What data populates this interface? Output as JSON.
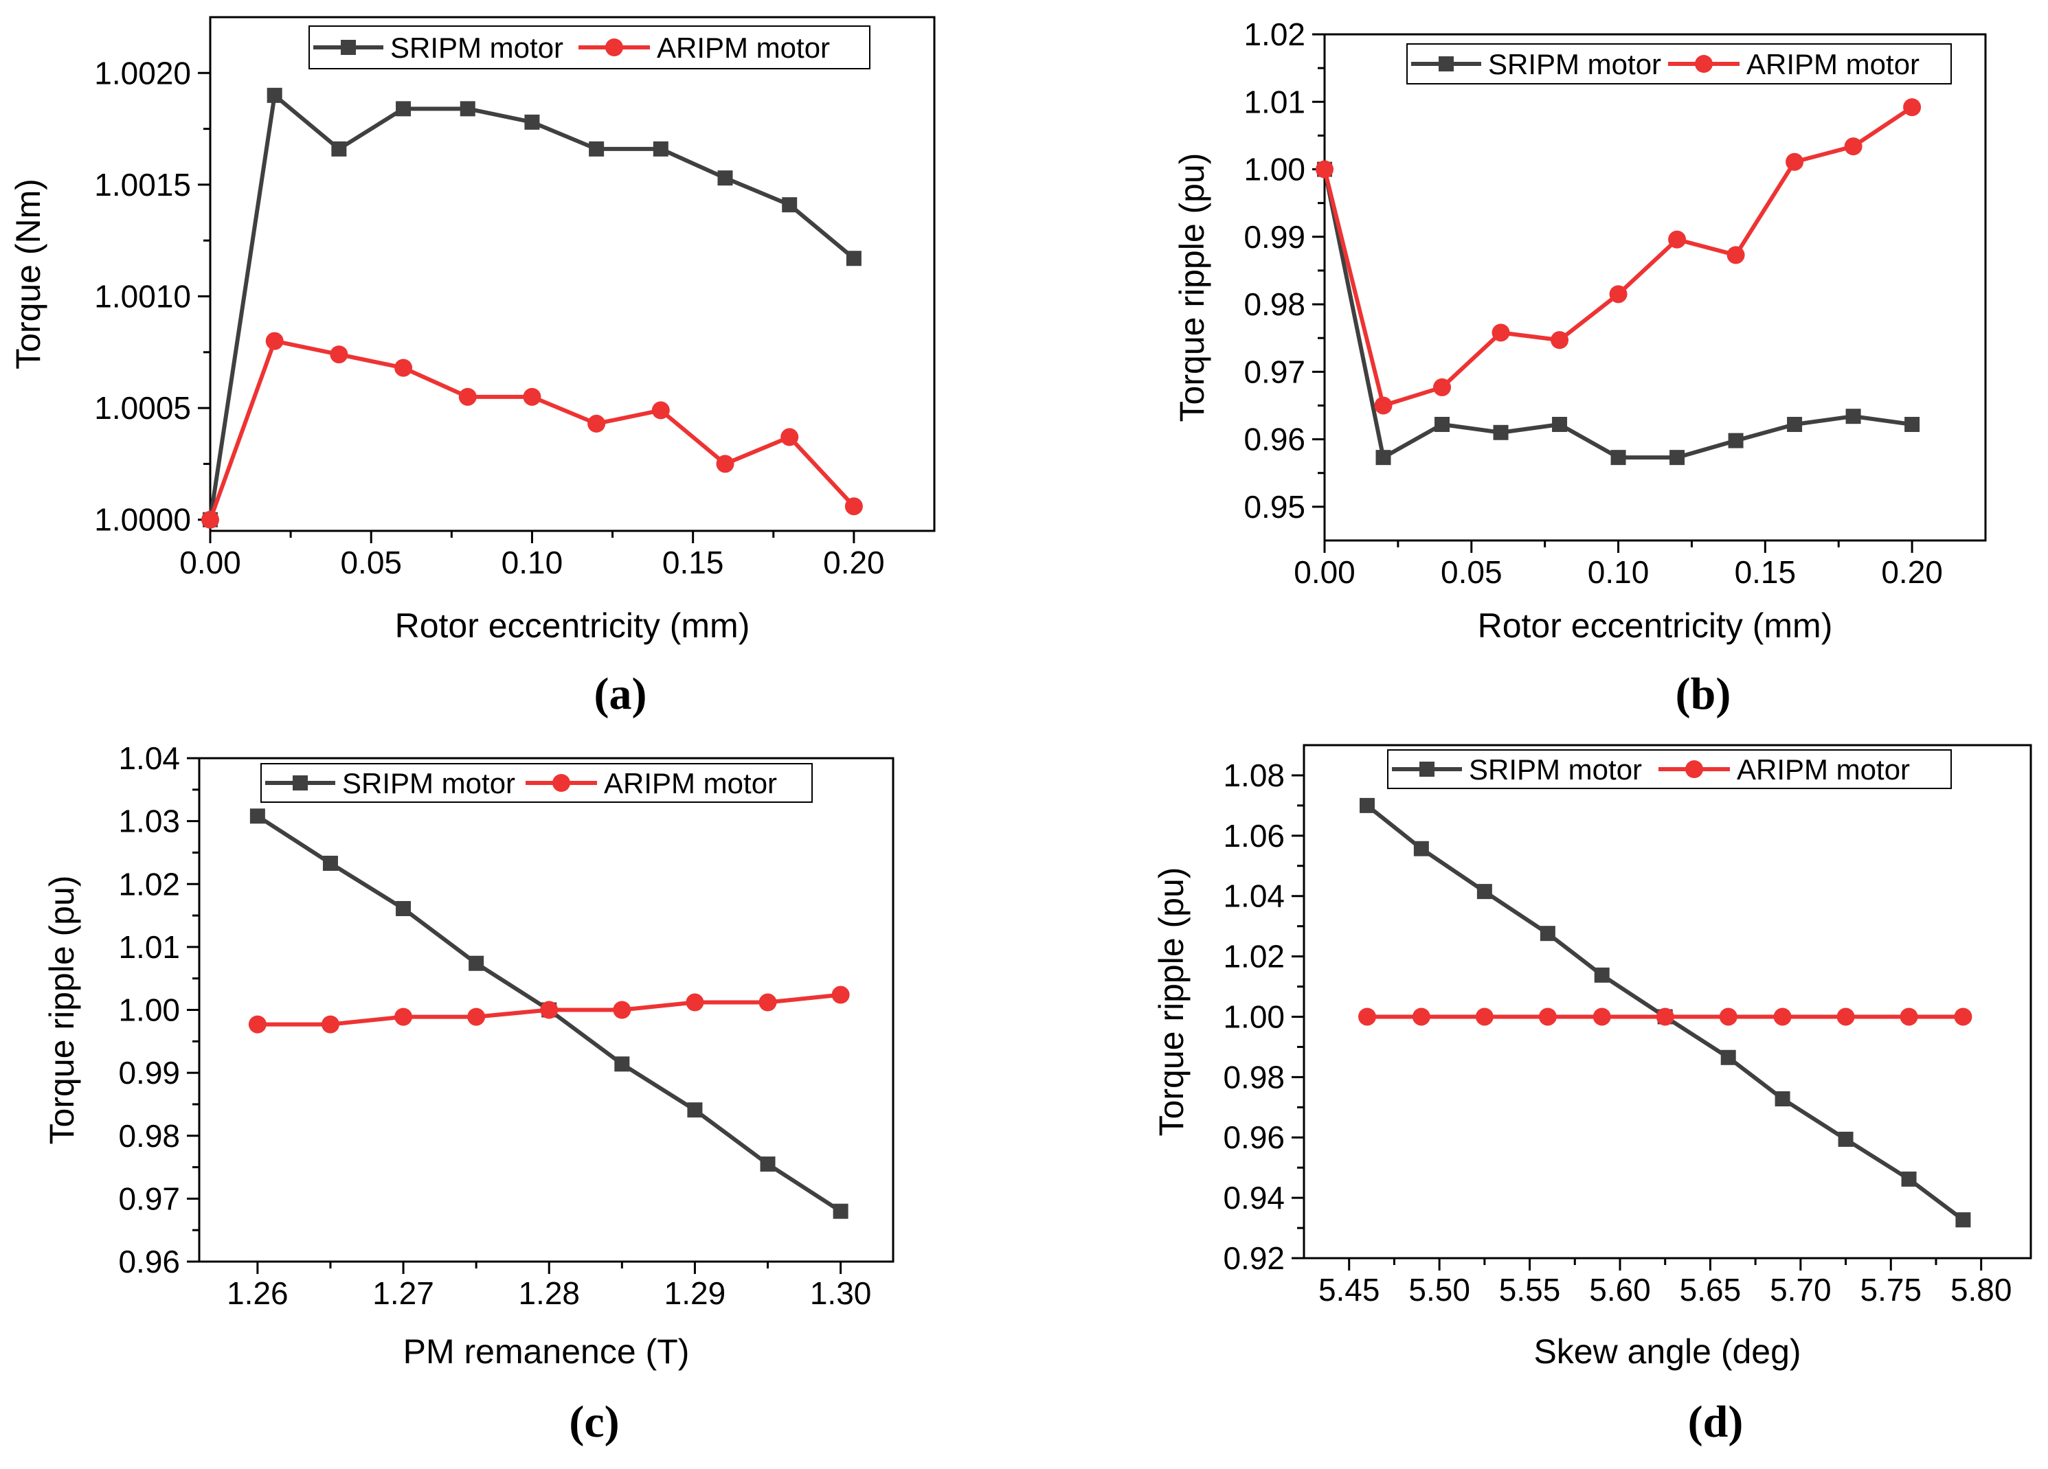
{
  "colors": {
    "sripm": "#404040",
    "aripm": "#ee3333",
    "axis": "#000000"
  },
  "chart_data": [
    {
      "id": "a",
      "panel_label": "(a)",
      "type": "line",
      "xlabel": "Rotor eccentricity (mm)",
      "ylabel": "Torque (Nm)",
      "xlim": [
        0,
        0.225
      ],
      "ylim": [
        0.99995,
        1.00225
      ],
      "xticks": [
        0,
        0.05,
        0.1,
        0.15,
        0.2
      ],
      "xtick_labels": [
        "0.00",
        "0.05",
        "0.10",
        "0.15",
        "0.20"
      ],
      "yticks": [
        1.0,
        1.0005,
        1.001,
        1.0015,
        1.002
      ],
      "ytick_labels": [
        "1.0000",
        "1.0005",
        "1.0010",
        "1.0015",
        "1.0020"
      ],
      "legend_position": "top-center",
      "series": [
        {
          "name": "SRIPM motor",
          "marker": "square",
          "x": [
            0,
            0.02,
            0.04,
            0.06,
            0.08,
            0.1,
            0.12,
            0.14,
            0.16,
            0.18,
            0.2
          ],
          "values": [
            1.0,
            1.0019,
            1.00166,
            1.00184,
            1.00184,
            1.00178,
            1.00166,
            1.00166,
            1.00153,
            1.00141,
            1.00117
          ]
        },
        {
          "name": "ARIPM motor",
          "marker": "circle",
          "x": [
            0,
            0.02,
            0.04,
            0.06,
            0.08,
            0.1,
            0.12,
            0.14,
            0.16,
            0.18,
            0.2
          ],
          "values": [
            1.0,
            1.0008,
            1.00074,
            1.00068,
            1.00055,
            1.00055,
            1.00043,
            1.00049,
            1.00025,
            1.00037,
            1.00006
          ]
        }
      ]
    },
    {
      "id": "b",
      "panel_label": "(b)",
      "type": "line",
      "xlabel": "Rotor eccentricity (mm)",
      "ylabel": "Torque ripple (pu)",
      "xlim": [
        0,
        0.225
      ],
      "ylim": [
        0.945,
        1.02
      ],
      "xticks": [
        0,
        0.05,
        0.1,
        0.15,
        0.2
      ],
      "xtick_labels": [
        "0.00",
        "0.05",
        "0.10",
        "0.15",
        "0.20"
      ],
      "yticks": [
        0.95,
        0.96,
        0.97,
        0.98,
        0.99,
        1.0,
        1.01,
        1.02
      ],
      "ytick_labels": [
        "0.95",
        "0.96",
        "0.97",
        "0.98",
        "0.99",
        "1.00",
        "1.01",
        "1.02"
      ],
      "legend_position": "top-center",
      "series": [
        {
          "name": "SRIPM motor",
          "marker": "square",
          "x": [
            0,
            0.02,
            0.04,
            0.06,
            0.08,
            0.1,
            0.12,
            0.14,
            0.16,
            0.18,
            0.2
          ],
          "values": [
            1.0,
            0.9573,
            0.9622,
            0.961,
            0.9622,
            0.9573,
            0.9573,
            0.9598,
            0.9622,
            0.9634,
            0.9622
          ]
        },
        {
          "name": "ARIPM motor",
          "marker": "circle",
          "x": [
            0,
            0.02,
            0.04,
            0.06,
            0.08,
            0.1,
            0.12,
            0.14,
            0.16,
            0.18,
            0.2
          ],
          "values": [
            1.0,
            0.965,
            0.9677,
            0.9758,
            0.9747,
            0.9815,
            0.9896,
            0.9873,
            1.0011,
            1.0034,
            1.0092
          ]
        }
      ]
    },
    {
      "id": "c",
      "panel_label": "(c)",
      "type": "line",
      "xlabel": "PM remanence (T)",
      "ylabel": "Torque ripple (pu)",
      "xlim": [
        1.256,
        1.3036
      ],
      "ylim": [
        0.96,
        1.04
      ],
      "xticks": [
        1.26,
        1.27,
        1.28,
        1.29,
        1.3
      ],
      "xtick_labels": [
        "1.26",
        "1.27",
        "1.28",
        "1.29",
        "1.30"
      ],
      "yticks": [
        0.96,
        0.97,
        0.98,
        0.99,
        1.0,
        1.01,
        1.02,
        1.03,
        1.04
      ],
      "ytick_labels": [
        "0.96",
        "0.97",
        "0.98",
        "0.99",
        "1.00",
        "1.01",
        "1.02",
        "1.03",
        "1.04"
      ],
      "legend_position": "top-center",
      "series": [
        {
          "name": "SRIPM motor",
          "marker": "square",
          "x": [
            1.26,
            1.265,
            1.27,
            1.275,
            1.28,
            1.285,
            1.29,
            1.295,
            1.3
          ],
          "values": [
            1.0308,
            1.0233,
            1.0161,
            1.0074,
            1.0,
            0.9914,
            0.9841,
            0.9755,
            0.968
          ]
        },
        {
          "name": "ARIPM motor",
          "marker": "circle",
          "x": [
            1.26,
            1.265,
            1.27,
            1.275,
            1.28,
            1.285,
            1.29,
            1.295,
            1.3
          ],
          "values": [
            0.9977,
            0.9977,
            0.9989,
            0.9989,
            1.0,
            1.0,
            1.0012,
            1.0012,
            1.0024
          ]
        }
      ]
    },
    {
      "id": "d",
      "panel_label": "(d)",
      "type": "line",
      "xlabel": "Skew angle (deg)",
      "ylabel": "Torque ripple (pu)",
      "xlim": [
        5.425,
        5.8275
      ],
      "ylim": [
        0.92,
        1.09
      ],
      "xticks": [
        5.45,
        5.5,
        5.55,
        5.6,
        5.65,
        5.7,
        5.75,
        5.8
      ],
      "xtick_labels": [
        "5.45",
        "5.50",
        "5.55",
        "5.60",
        "5.65",
        "5.70",
        "5.75",
        "5.80"
      ],
      "yticks": [
        0.92,
        0.94,
        0.96,
        0.98,
        1.0,
        1.02,
        1.04,
        1.06,
        1.08
      ],
      "ytick_labels": [
        "0.92",
        "0.94",
        "0.96",
        "0.98",
        "1.00",
        "1.02",
        "1.04",
        "1.06",
        "1.08"
      ],
      "legend_position": "top-center",
      "series": [
        {
          "name": "SRIPM motor",
          "marker": "square",
          "x": [
            5.46,
            5.49,
            5.525,
            5.56,
            5.59,
            5.625,
            5.66,
            5.69,
            5.725,
            5.76,
            5.79
          ],
          "values": [
            1.07,
            1.0557,
            1.0415,
            1.0276,
            1.0138,
            1.0,
            0.9865,
            0.9728,
            0.9594,
            0.9462,
            0.9327
          ]
        },
        {
          "name": "ARIPM motor",
          "marker": "circle",
          "x": [
            5.46,
            5.49,
            5.525,
            5.56,
            5.59,
            5.625,
            5.66,
            5.69,
            5.725,
            5.76,
            5.79
          ],
          "values": [
            1.0,
            1.0,
            1.0,
            1.0,
            1.0,
            1.0,
            1.0,
            1.0,
            1.0,
            1.0,
            1.0
          ]
        }
      ]
    }
  ]
}
